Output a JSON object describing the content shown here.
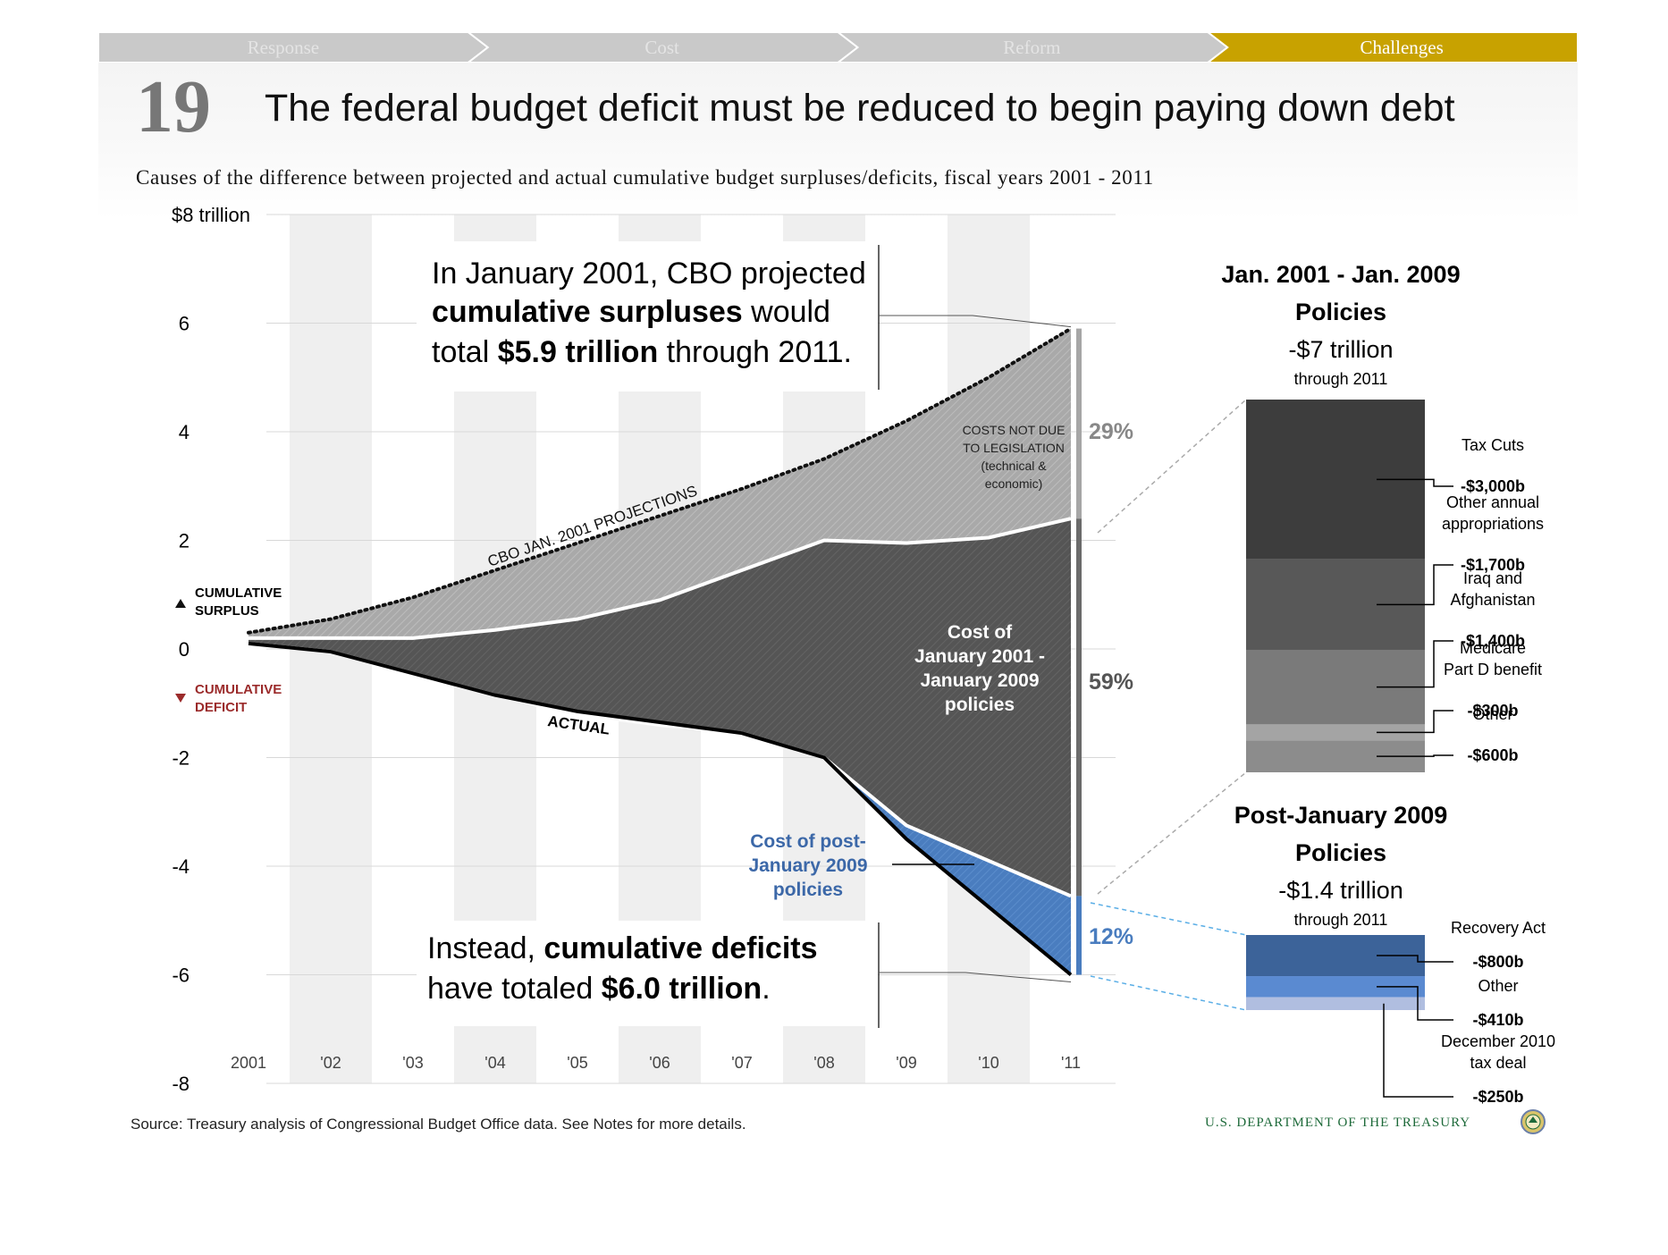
{
  "nav": {
    "tabs": [
      {
        "label": "Response",
        "active": false
      },
      {
        "label": "Cost",
        "active": false
      },
      {
        "label": "Reform",
        "active": false
      },
      {
        "label": "Challenges",
        "active": true
      }
    ],
    "colors": {
      "inactive": "#c9c9c9",
      "inactive_text": "#e4e4e4",
      "active": "#c8a200",
      "active_text": "#ffffff"
    }
  },
  "slide": {
    "number": "19",
    "title": "The federal budget deficit must be reduced to begin paying down debt",
    "subtitle": "Causes of the difference between projected and actual cumulative budget surpluses/deficits, fiscal years 2001 - 2011"
  },
  "chart_data": {
    "type": "area",
    "x": [
      "2001",
      "'02",
      "'03",
      "'04",
      "'05",
      "'06",
      "'07",
      "'08",
      "'09",
      "'10",
      "'11"
    ],
    "ylim": [
      -8,
      8
    ],
    "yticks": [
      "$8 trillion",
      "6",
      "4",
      "2",
      "0",
      "-2",
      "-4",
      "-6",
      "-8"
    ],
    "series": [
      {
        "name": "CBO JAN. 2001 PROJECTIONS",
        "values": [
          0.3,
          0.55,
          0.95,
          1.45,
          1.95,
          2.45,
          2.95,
          3.5,
          4.2,
          5.0,
          5.9
        ]
      },
      {
        "values": [
          0.2,
          0.2,
          0.2,
          0.35,
          0.55,
          0.9,
          1.45,
          2.0,
          1.95,
          2.05,
          2.4
        ]
      },
      {
        "values": [
          0.1,
          -0.05,
          -0.45,
          -0.85,
          -1.2,
          -1.4,
          -1.55,
          -2.0,
          -3.25,
          -3.9,
          -4.55
        ]
      },
      {
        "name": "ACTUAL",
        "values": [
          0.1,
          -0.05,
          -0.45,
          -0.85,
          -1.15,
          -1.35,
          -1.55,
          -2.0,
          -3.5,
          -4.75,
          -6.0
        ]
      }
    ],
    "colors": {
      "projection_band": "#a9a9a9",
      "policy_2001_2009": "#555555",
      "post_2009": "#4a7dbf",
      "actual_line": "#000000"
    },
    "legend": {
      "surplus": "CUMULATIVE SURPLUS",
      "deficit": "CUMULATIVE DEFICIT"
    },
    "annotations": {
      "projected_top": [
        "In January 2001, CBO projected",
        "cumulative surpluses",
        " would",
        "total ",
        "$5.9 trillion",
        " through 2011."
      ],
      "actual_bottom": [
        "Instead, ",
        "cumulative deficits",
        "have totaled ",
        "$6.0 trillion",
        "."
      ],
      "costs_not_due": [
        "COSTS NOT DUE",
        "TO LEGISLATION",
        "(technical &",
        "economic)"
      ],
      "cost_2001_2009": [
        "Cost of",
        "January 2001 -",
        "January 2009",
        "policies"
      ],
      "cost_post_2009": [
        "Cost of post-",
        "January 2009",
        "policies"
      ],
      "shares": [
        "29%",
        "59%",
        "12%"
      ]
    },
    "breakdown_2001_2009": {
      "heading": [
        "Jan. 2001 - Jan. 2009",
        "Policies"
      ],
      "total": "-$7 trillion",
      "through": "through 2011",
      "segments": [
        {
          "label": [
            "Tax Cuts"
          ],
          "value": "-$3,000b",
          "amount": 3000,
          "color": "#3d3d3d"
        },
        {
          "label": [
            "Other annual",
            "appropriations"
          ],
          "value": "-$1,700b",
          "amount": 1700,
          "color": "#585858"
        },
        {
          "label": [
            "Iraq and",
            "Afghanistan"
          ],
          "value": "-$1,400b",
          "amount": 1400,
          "color": "#7a7a7a"
        },
        {
          "label": [
            "Medicare",
            "Part D benefit"
          ],
          "value": "-$300b",
          "amount": 300,
          "color": "#a4a4a4"
        },
        {
          "label": [
            "Other"
          ],
          "value": "-$600b",
          "amount": 600,
          "color": "#8c8c8c"
        }
      ]
    },
    "breakdown_post_2009": {
      "heading": [
        "Post-January 2009",
        "Policies"
      ],
      "total": "-$1.4 trillion",
      "through": "through 2011",
      "segments": [
        {
          "label": [
            "Recovery Act"
          ],
          "value": "-$800b",
          "amount": 800,
          "color": "#3c6399"
        },
        {
          "label": [
            "Other"
          ],
          "value": "-$410b",
          "amount": 410,
          "color": "#5a8ad1"
        },
        {
          "label": [
            "December 2010",
            "tax deal"
          ],
          "value": "-$250b",
          "amount": 250,
          "color": "#b0bee0"
        }
      ]
    }
  },
  "footer": {
    "source": "Source: Treasury analysis of Congressional Budget Office data. See Notes for more details.",
    "agency": "U.S. DEPARTMENT OF THE TREASURY",
    "seal_icon": "treasury-seal-icon"
  }
}
